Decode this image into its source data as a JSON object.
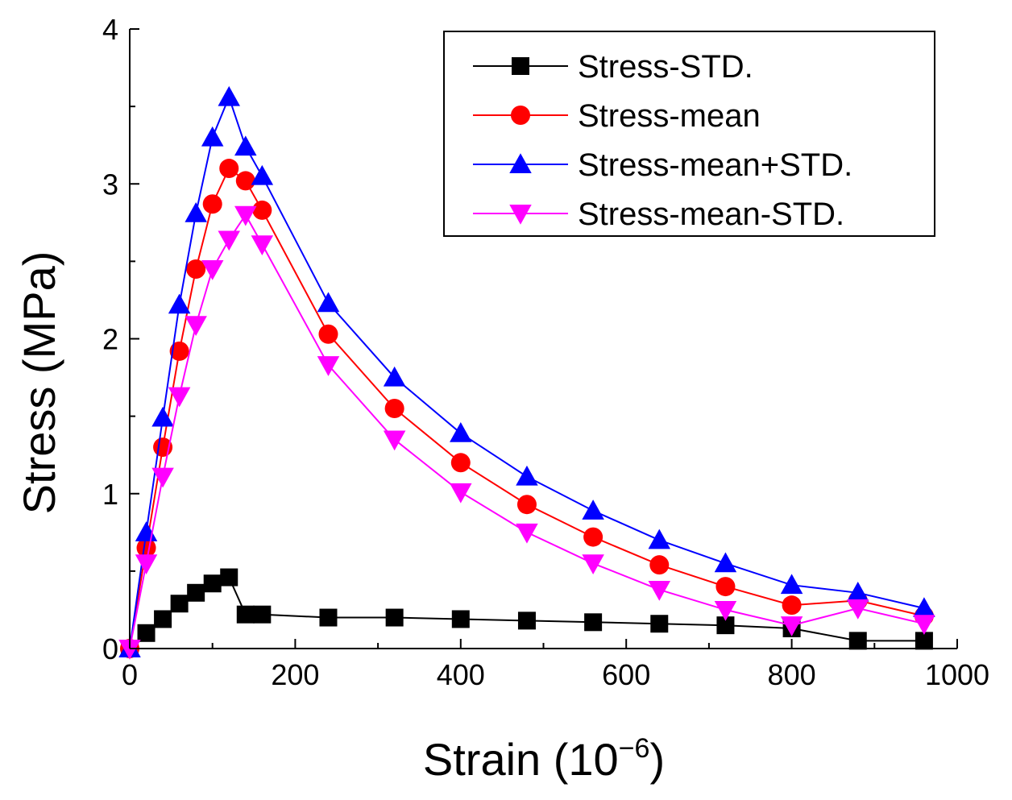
{
  "chart_data": {
    "type": "line",
    "title": "",
    "xlabel": "Strain (10",
    "xlabel_superscript": "−6",
    "xlabel_close": ")",
    "ylabel": "Stress (MPa)",
    "xlim": [
      0,
      1000
    ],
    "ylim": [
      0,
      4
    ],
    "xticks": [
      "0",
      "200",
      "400",
      "600",
      "800",
      "1000"
    ],
    "yticks": [
      "0",
      "1",
      "2",
      "3",
      "4"
    ],
    "grid": false,
    "legend_position": "top-right",
    "series": [
      {
        "name": "Stress-STD.",
        "color": "#000000",
        "marker": "square",
        "x": [
          0,
          20,
          40,
          60,
          80,
          100,
          120,
          140,
          160,
          240,
          320,
          400,
          480,
          560,
          640,
          720,
          800,
          880,
          960
        ],
        "y": [
          0,
          0.1,
          0.19,
          0.29,
          0.36,
          0.42,
          0.46,
          0.22,
          0.22,
          0.2,
          0.2,
          0.19,
          0.18,
          0.17,
          0.16,
          0.15,
          0.13,
          0.05,
          0.05
        ]
      },
      {
        "name": "Stress-mean",
        "color": "#ff0000",
        "marker": "circle",
        "x": [
          0,
          20,
          40,
          60,
          80,
          100,
          120,
          140,
          160,
          240,
          320,
          400,
          480,
          560,
          640,
          720,
          800,
          880,
          960
        ],
        "y": [
          0,
          0.65,
          1.3,
          1.92,
          2.45,
          2.87,
          3.1,
          3.02,
          2.83,
          2.03,
          1.55,
          1.2,
          0.93,
          0.72,
          0.54,
          0.4,
          0.28,
          0.31,
          0.21
        ]
      },
      {
        "name": "Stress-mean+STD.",
        "color": "#0000ff",
        "marker": "triangle-up",
        "x": [
          0,
          20,
          40,
          60,
          80,
          100,
          120,
          140,
          160,
          240,
          320,
          400,
          480,
          560,
          640,
          720,
          800,
          880,
          960
        ],
        "y": [
          0,
          0.75,
          1.49,
          2.22,
          2.81,
          3.3,
          3.56,
          3.24,
          3.05,
          2.23,
          1.75,
          1.39,
          1.11,
          0.89,
          0.7,
          0.55,
          0.41,
          0.36,
          0.26
        ]
      },
      {
        "name": "Stress-mean-STD.",
        "color": "#ff00ff",
        "marker": "triangle-down",
        "x": [
          0,
          20,
          40,
          60,
          80,
          100,
          120,
          140,
          160,
          240,
          320,
          400,
          480,
          560,
          640,
          720,
          800,
          880,
          960
        ],
        "y": [
          0,
          0.55,
          1.11,
          1.63,
          2.09,
          2.45,
          2.64,
          2.8,
          2.61,
          1.83,
          1.35,
          1.01,
          0.75,
          0.55,
          0.38,
          0.25,
          0.15,
          0.26,
          0.16
        ]
      }
    ]
  }
}
